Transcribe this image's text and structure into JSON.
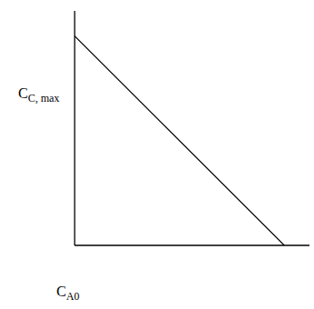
{
  "chart_data": {
    "type": "line",
    "xlabel": [
      "C",
      "A0"
    ],
    "ylabel": [
      "C",
      "C, max"
    ],
    "x": [
      0,
      1
    ],
    "values": [
      1,
      0
    ],
    "color": "#000000",
    "xlim": [
      0,
      1.12
    ],
    "ylim": [
      0,
      1.12
    ],
    "xticks": [],
    "yticks": [],
    "tick_labels": false,
    "grid": false
  }
}
